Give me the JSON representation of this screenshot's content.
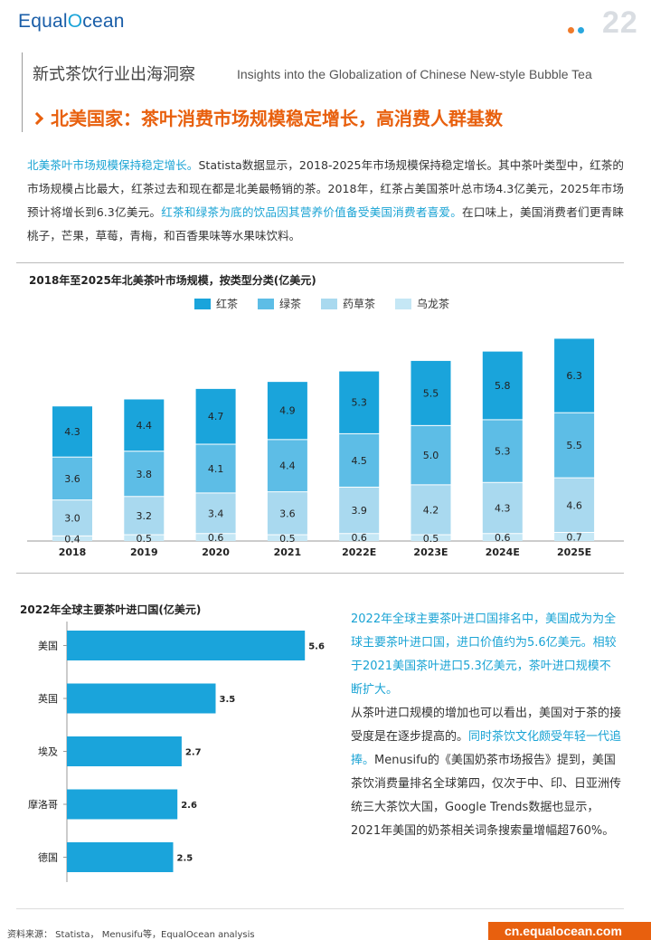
{
  "header": {
    "logo_prefix": "Equal",
    "logo_accent": "O",
    "logo_suffix": "cean",
    "page_number": "22",
    "title_cn": "新式茶饮行业出海洞察",
    "title_en": "Insights into the Globalization of Chinese New-style Bubble Tea",
    "headline": "北美国家：茶叶消费市场规模稳定增长，高消费人群基数"
  },
  "intro": {
    "p1_hl": "北美茶叶市场规模保持稳定增长。",
    "p1_text": "Statista数据显示，2018-2025年市场规模保持稳定增长。其中茶叶类型中，红茶的市场规模占比最大，红茶过去和现在都是北美最畅销的茶。2018年，红茶占美国茶叶总市场4.3亿美元，2025年市场预计将增长到6.3亿美元。",
    "p2_hl": "红茶和绿茶为底的饮品因其营养价值备受美国消费者喜爱。",
    "p3_text": "在口味上，美国消费者们更青睐桃子，芒果，草莓，青梅，和百香果味等水果味饮料。"
  },
  "chart_data": [
    {
      "type": "bar",
      "stacked": true,
      "title": "2018年至2025年北美茶叶市场规模，按类型分类(亿美元)",
      "categories": [
        "2018",
        "2019",
        "2020",
        "2021",
        "2022E",
        "2023E",
        "2024E",
        "2025E"
      ],
      "series": [
        {
          "name": "乌龙茶",
          "color": "#c5e7f5",
          "values": [
            0.4,
            0.5,
            0.6,
            0.5,
            0.6,
            0.5,
            0.6,
            0.7
          ]
        },
        {
          "name": "药草茶",
          "color": "#a9d9ef",
          "values": [
            3.0,
            3.2,
            3.4,
            3.6,
            3.9,
            4.2,
            4.3,
            4.6
          ]
        },
        {
          "name": "绿茶",
          "color": "#5dbde6",
          "values": [
            3.6,
            3.8,
            4.1,
            4.4,
            4.5,
            5.0,
            5.3,
            5.5
          ]
        },
        {
          "name": "红茶",
          "color": "#1aa4db",
          "values": [
            4.3,
            4.4,
            4.7,
            4.9,
            5.3,
            5.5,
            5.8,
            6.3
          ]
        }
      ],
      "legend_order": [
        "红茶",
        "绿茶",
        "药草茶",
        "乌龙茶"
      ],
      "legend_position": "top",
      "grid": false
    },
    {
      "type": "bar",
      "orientation": "horizontal",
      "title": "2022年全球主要茶叶进口国(亿美元)",
      "categories": [
        "美国",
        "英国",
        "埃及",
        "摩洛哥",
        "德国"
      ],
      "values": [
        5.6,
        3.5,
        2.7,
        2.6,
        2.5
      ],
      "color": "#1aa4db",
      "xlim": [
        0,
        6
      ],
      "grid": false
    }
  ],
  "right_text": {
    "hl1": "2022年全球主要茶叶进口国排名中，美国成为为全球主要茶叶进口国，进口价值约为5.6亿美元。相较于2021美国茶叶进口5.3亿美元，茶叶进口规模不断扩大。",
    "t2": "从茶叶进口规模的增加也可以看出，美国对于茶的接受度是在逐步提高的。",
    "hl3": "同时茶饮文化颇受年轻一代追捧。",
    "t4": "Menusifu的《美国奶茶市场报告》提到，美国茶饮消费量排名全球第四，仅次于中、印、日亚洲传统三大茶饮大国，Google Trends数据也显示，2021年美国的奶茶相关词条搜索量增幅超760%。"
  },
  "footer": {
    "source": "资料来源： Statista， Menusifu等，EqualOcean analysis",
    "url": "cn.equalocean.com"
  },
  "colors": {
    "accent": "#e8600e",
    "highlight": "#19a3d4",
    "brand_blue": "#1a5ea8"
  }
}
